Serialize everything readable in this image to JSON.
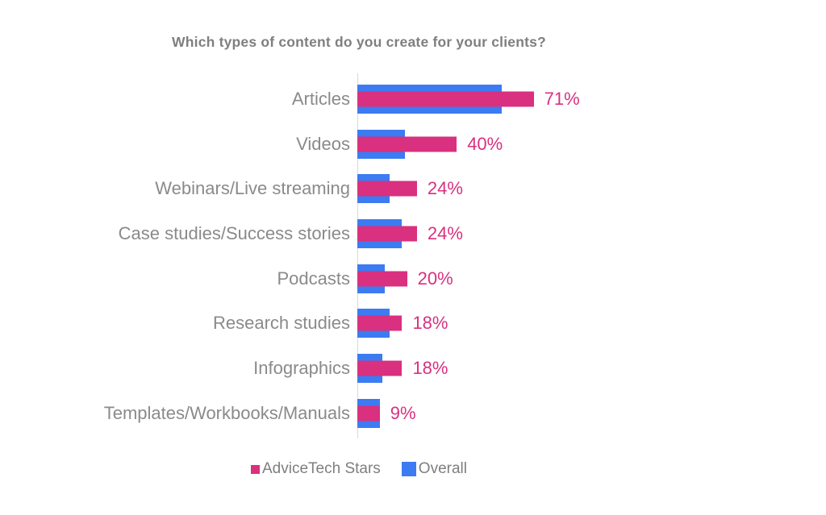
{
  "title": "Which types of content do you create for your clients?",
  "chart_data": {
    "type": "bar",
    "orientation": "horizontal",
    "style": "overlapped-bars",
    "title": "Which types of content do you create for your clients?",
    "categories": [
      "Articles",
      "Videos",
      "Webinars/Live streaming",
      "Case studies/Success stories",
      "Podcasts",
      "Research studies",
      "Infographics",
      "Templates/Workbooks/Manuals"
    ],
    "series": [
      {
        "name": "AdviceTech Stars",
        "color": "#D9307F",
        "values": [
          71,
          40,
          24,
          24,
          20,
          18,
          18,
          9
        ],
        "data_labels": [
          "71%",
          "40%",
          "24%",
          "24%",
          "20%",
          "18%",
          "18%",
          "9%"
        ]
      },
      {
        "name": "Overall",
        "color": "#3C7BF2",
        "values": [
          58,
          19,
          13,
          18,
          11,
          13,
          10,
          9
        ],
        "data_labels": null,
        "note": "values estimated from bar lengths; no labels shown"
      }
    ],
    "xlabel": "",
    "ylabel": "",
    "xlim": [
      0,
      100
    ],
    "grid": false,
    "value_axis_ticks_visible": false,
    "legend_position": "bottom-center",
    "colors": {
      "title_text": "#7F7F7F",
      "category_text": "#8A8A8A",
      "legend_text": "#7F7F7F",
      "axis_line": "#D9D9D9",
      "background": "#FFFFFF"
    }
  },
  "legend": {
    "items": [
      {
        "label": "AdviceTech Stars",
        "color": "#D9307F"
      },
      {
        "label": "Overall",
        "color": "#3C7BF2"
      }
    ]
  }
}
